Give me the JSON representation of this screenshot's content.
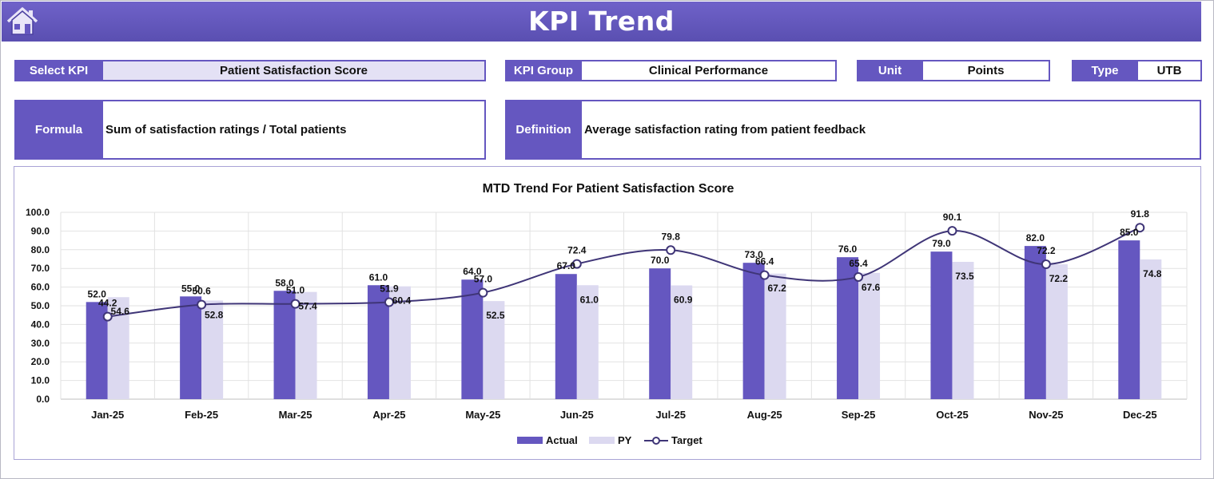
{
  "header": {
    "title": "KPI Trend",
    "home_icon": "home-icon"
  },
  "filters": {
    "select_kpi": {
      "label": "Select KPI",
      "value": "Patient Satisfaction Score"
    },
    "kpi_group": {
      "label": "KPI Group",
      "value": "Clinical Performance"
    },
    "unit": {
      "label": "Unit",
      "value": "Points"
    },
    "type": {
      "label": "Type",
      "value": "UTB"
    }
  },
  "info": {
    "formula": {
      "label": "Formula",
      "value": "Sum of satisfaction ratings / Total patients"
    },
    "definition": {
      "label": "Definition",
      "value": "Average satisfaction rating from patient feedback"
    }
  },
  "colors": {
    "accent": "#6557c0",
    "actual": "#6557c0",
    "py": "#dcd9f0",
    "target": "#3f3577"
  },
  "chart_data": {
    "type": "bar",
    "title": "MTD Trend For Patient Satisfaction Score",
    "categories": [
      "Jan-25",
      "Feb-25",
      "Mar-25",
      "Apr-25",
      "May-25",
      "Jun-25",
      "Jul-25",
      "Aug-25",
      "Sep-25",
      "Oct-25",
      "Nov-25",
      "Dec-25"
    ],
    "ylim": [
      0,
      100
    ],
    "yticks": [
      "0.0",
      "10.0",
      "20.0",
      "30.0",
      "40.0",
      "50.0",
      "60.0",
      "70.0",
      "80.0",
      "90.0",
      "100.0"
    ],
    "grid": true,
    "legend_position": "bottom",
    "series": [
      {
        "name": "Actual",
        "kind": "bar",
        "values": [
          52.0,
          55.0,
          58.0,
          61.0,
          64.0,
          67.0,
          70.0,
          73.0,
          76.0,
          79.0,
          82.0,
          85.0
        ]
      },
      {
        "name": "PY",
        "kind": "bar",
        "values": [
          54.6,
          52.8,
          57.4,
          60.4,
          52.5,
          61.0,
          60.9,
          67.2,
          67.6,
          73.5,
          72.2,
          74.8
        ]
      },
      {
        "name": "Target",
        "kind": "line",
        "values": [
          44.2,
          50.6,
          51.0,
          51.9,
          57.0,
          72.4,
          79.8,
          66.4,
          65.4,
          90.1,
          72.2,
          91.8
        ]
      }
    ]
  }
}
